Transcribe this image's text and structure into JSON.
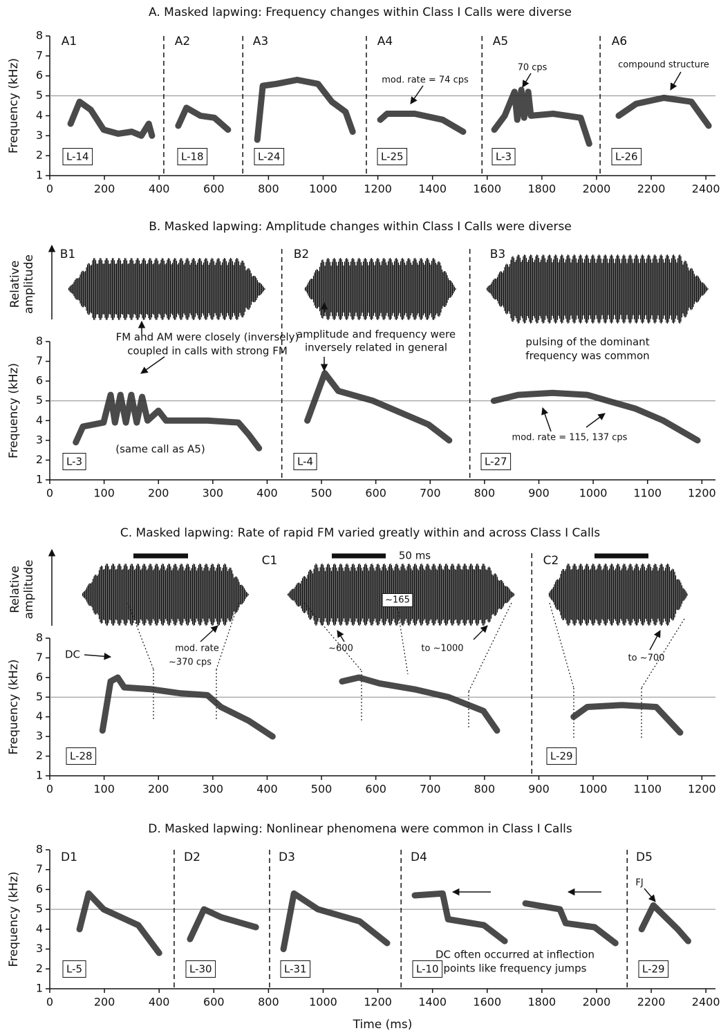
{
  "chart_data": [
    {
      "type": "line",
      "title": "A. Masked lapwing: Frequency changes within Class I Calls were diverse",
      "ylabel": "Frequency (kHz)",
      "xlim": [
        0,
        2435
      ],
      "ylim": [
        1,
        8
      ],
      "xticks": [
        0,
        200,
        400,
        600,
        800,
        1000,
        1200,
        1400,
        1600,
        1800,
        2000,
        2200,
        2400
      ],
      "yticks": [
        1,
        2,
        3,
        4,
        5,
        6,
        7,
        8
      ],
      "reference_line": 5,
      "dividers": [
        417,
        706,
        1158,
        1581,
        2013
      ],
      "panel_labels": [
        "A1",
        "A2",
        "A3",
        "A4",
        "A5",
        "A6"
      ],
      "series": [
        {
          "name": "L-14",
          "x": [
            76,
            109,
            150,
            197,
            250,
            300,
            335,
            362,
            374
          ],
          "y": [
            3.6,
            4.7,
            4.3,
            3.3,
            3.1,
            3.2,
            3.0,
            3.6,
            3.0
          ]
        },
        {
          "name": "L-18",
          "x": [
            470,
            500,
            551,
            602,
            652
          ],
          "y": [
            3.5,
            4.4,
            4.0,
            3.9,
            3.3
          ]
        },
        {
          "name": "L-24",
          "x": [
            759,
            779,
            829,
            905,
            981,
            1032,
            1082,
            1108
          ],
          "y": [
            2.8,
            5.5,
            5.6,
            5.8,
            5.6,
            4.7,
            4.2,
            3.2
          ]
        },
        {
          "name": "L-25",
          "x": [
            1209,
            1234,
            1335,
            1437,
            1512
          ],
          "y": [
            3.8,
            4.1,
            4.1,
            3.8,
            3.2
          ]
        },
        {
          "name": "L-3",
          "x": [
            1626,
            1664,
            1700,
            1710,
            1725,
            1735,
            1750,
            1760,
            1841,
            1942,
            1973
          ],
          "y": [
            3.3,
            4.0,
            5.2,
            3.8,
            5.3,
            3.9,
            5.2,
            4.0,
            4.1,
            3.9,
            2.6
          ]
        },
        {
          "name": "L-26",
          "x": [
            2081,
            2145,
            2246,
            2347,
            2410
          ],
          "y": [
            4.0,
            4.6,
            4.9,
            4.7,
            3.5
          ]
        }
      ],
      "annotations": [
        "mod. rate = 74 cps",
        "70 cps",
        "compound structure"
      ]
    },
    {
      "type": "line",
      "title": "B. Masked lapwing: Amplitude changes within Class I Calls were diverse",
      "ylabel": "Frequency (kHz)",
      "amplitude_label": [
        "Relative",
        "amplitude"
      ],
      "xlim": [
        0,
        1225
      ],
      "ylim": [
        1,
        8
      ],
      "xticks": [
        0,
        100,
        200,
        300,
        400,
        500,
        600,
        700,
        800,
        900,
        1000,
        1100,
        1200
      ],
      "yticks": [
        1,
        2,
        3,
        4,
        5,
        6,
        7,
        8
      ],
      "reference_line": 5,
      "dividers": [
        427,
        773
      ],
      "panel_labels": [
        "B1",
        "B2",
        "B3"
      ],
      "series": [
        {
          "name": "L-3",
          "x": [
            48,
            61,
            99,
            112,
            120,
            130,
            140,
            150,
            160,
            170,
            180,
            200,
            214,
            290,
            347,
            366,
            385
          ],
          "y": [
            2.9,
            3.7,
            3.9,
            5.3,
            3.9,
            5.3,
            3.9,
            5.3,
            3.9,
            5.2,
            4.0,
            4.5,
            4.0,
            4.0,
            3.9,
            3.3,
            2.6
          ]
        },
        {
          "name": "L-4",
          "x": [
            474,
            506,
            531,
            595,
            646,
            697,
            735
          ],
          "y": [
            4.0,
            6.4,
            5.5,
            5.0,
            4.4,
            3.8,
            3.0
          ]
        },
        {
          "name": "L-27",
          "x": [
            817,
            862,
            925,
            989,
            1027,
            1078,
            1129,
            1192
          ],
          "y": [
            5.0,
            5.3,
            5.4,
            5.3,
            5.0,
            4.6,
            4.0,
            3.0
          ]
        }
      ],
      "annotations": [
        "FM and AM were closely (inversely)",
        "coupled in calls with strong FM",
        "(same call as A5)",
        "amplitude and frequency were",
        "inversely related in general",
        "pulsing of the dominant",
        "frequency was common",
        "mod. rate = 115, 137 cps"
      ]
    },
    {
      "type": "line",
      "title": "C. Masked lapwing: Rate of rapid FM varied greatly within and across Class I Calls",
      "ylabel": "Frequency (kHz)",
      "amplitude_label": [
        "Relative",
        "amplitude"
      ],
      "xlim": [
        0,
        1225
      ],
      "ylim": [
        1,
        8
      ],
      "xticks": [
        0,
        100,
        200,
        300,
        400,
        500,
        600,
        700,
        800,
        900,
        1000,
        1100,
        1200
      ],
      "yticks": [
        1,
        2,
        3,
        4,
        5,
        6,
        7,
        8
      ],
      "reference_line": 5,
      "dividers": [
        887
      ],
      "panel_labels": [
        "C1",
        "C2"
      ],
      "series": [
        {
          "name": "L-28",
          "x": [
            97,
            112,
            125,
            137,
            188,
            239,
            290,
            315,
            366,
            410
          ],
          "y": [
            3.3,
            5.8,
            6.0,
            5.5,
            5.4,
            5.2,
            5.1,
            4.5,
            3.8,
            3.0
          ]
        },
        {
          "x": [
            538,
            569,
            607,
            671,
            734,
            798,
            823
          ],
          "y": [
            5.8,
            6.0,
            5.7,
            5.4,
            5.0,
            4.3,
            3.3
          ]
        },
        {
          "name": "L-29",
          "x": [
            964,
            989,
            1053,
            1116,
            1160
          ],
          "y": [
            4.0,
            4.5,
            4.6,
            4.5,
            3.2
          ]
        }
      ],
      "annotations": [
        "DC",
        "mod. rate",
        "~370 cps",
        "50 ms",
        "~165",
        "~600",
        "to ~1000",
        "to ~700"
      ]
    },
    {
      "type": "line",
      "title": "D. Masked lapwing: Nonlinear phenomena were common in Class I Calls",
      "ylabel": "Frequency (kHz)",
      "xlabel": "Time (ms)",
      "xlim": [
        0,
        2435
      ],
      "ylim": [
        1,
        8
      ],
      "xticks": [
        0,
        200,
        400,
        600,
        800,
        1000,
        1200,
        1400,
        1600,
        1800,
        2000,
        2200,
        2400
      ],
      "yticks": [
        1,
        2,
        3,
        4,
        5,
        6,
        7,
        8
      ],
      "reference_line": 5,
      "dividers": [
        455,
        804,
        1285,
        2112
      ],
      "panel_labels": [
        "D1",
        "D2",
        "D3",
        "D4",
        "D5"
      ],
      "series": [
        {
          "name": "L-5",
          "x": [
            109,
            142,
            197,
            324,
            400
          ],
          "y": [
            4.0,
            5.8,
            5.0,
            4.2,
            2.8
          ]
        },
        {
          "name": "L-30",
          "x": [
            513,
            564,
            627,
            703,
            754
          ],
          "y": [
            3.5,
            5.0,
            4.6,
            4.3,
            4.1
          ]
        },
        {
          "name": "L-31",
          "x": [
            855,
            893,
            981,
            1133,
            1234
          ],
          "y": [
            3.0,
            5.8,
            5.0,
            4.4,
            3.3
          ]
        },
        {
          "name": "L-10",
          "x": [
            1335,
            1437,
            1457,
            1588,
            1664,
            null,
            1740,
            1866,
            1887,
            1993,
            2069
          ],
          "y": [
            5.7,
            5.8,
            4.5,
            4.2,
            3.4,
            null,
            5.3,
            5.0,
            4.3,
            4.1,
            3.3
          ]
        },
        {
          "name": "L-29",
          "x": [
            2165,
            2208,
            2297,
            2335
          ],
          "y": [
            4.0,
            5.2,
            4.0,
            3.4
          ]
        }
      ],
      "annotations": [
        "FJ",
        "DC often occurred at inflection",
        "points like frequency jumps"
      ]
    }
  ]
}
